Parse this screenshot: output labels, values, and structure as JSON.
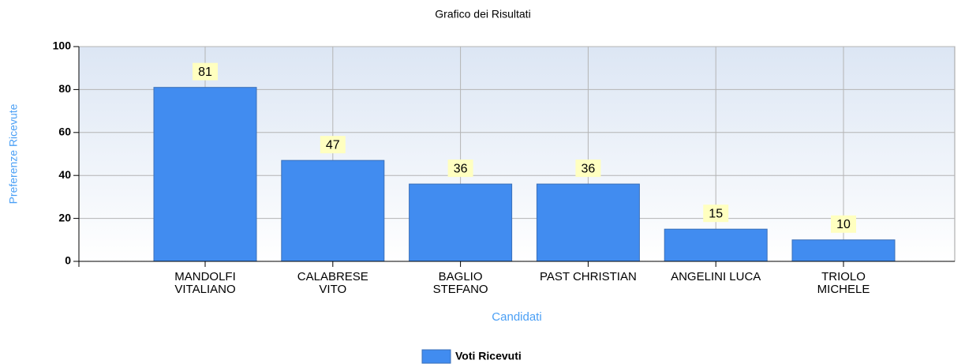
{
  "chart_data": {
    "type": "bar",
    "title": "Grafico dei Risultati",
    "x_label": "Candidati",
    "y_label": "Preferenze Ricevute",
    "categories": [
      "MANDOLFI\nVITALIANO",
      "CALABRESE\nVITO",
      "BAGLIO\nSTEFANO",
      "PAST CHRISTIAN",
      "ANGELINI LUCA",
      "TRIOLO\nMICHELE"
    ],
    "series": [
      {
        "name": "Voti Ricevuti",
        "color": "#418cf0",
        "values": [
          81,
          47,
          36,
          36,
          15,
          10
        ]
      }
    ],
    "ylim": [
      0,
      100
    ],
    "yticks": [
      0,
      20,
      40,
      60,
      80,
      100
    ],
    "grid": true,
    "legend": "bottom"
  }
}
